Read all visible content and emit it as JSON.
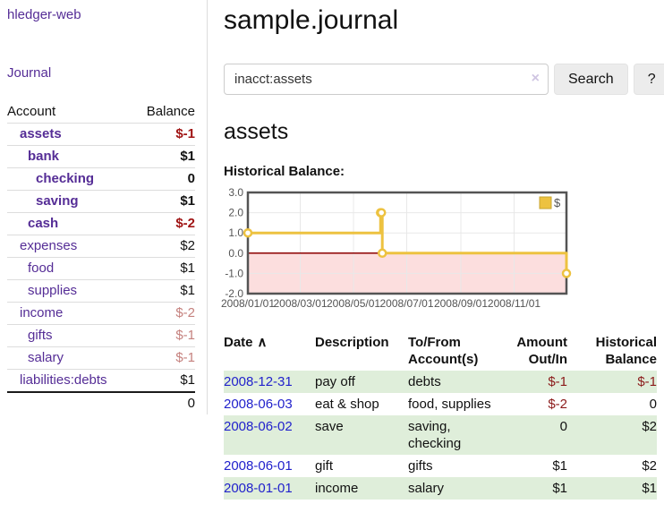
{
  "brand": "hledger-web",
  "nav": {
    "journal": "Journal"
  },
  "page": {
    "title": "sample.journal",
    "account_heading": "assets",
    "chart_heading": "Historical Balance:"
  },
  "search": {
    "value": "inacct:assets",
    "clear": "×",
    "button": "Search",
    "help": "?"
  },
  "sidebar": {
    "col_account": "Account",
    "col_balance": "Balance",
    "rows": [
      {
        "name": "assets",
        "balance": "$-1"
      },
      {
        "name": "bank",
        "balance": "$1"
      },
      {
        "name": "checking",
        "balance": "0"
      },
      {
        "name": "saving",
        "balance": "$1"
      },
      {
        "name": "cash",
        "balance": "$-2"
      },
      {
        "name": "expenses",
        "balance": "$2"
      },
      {
        "name": "food",
        "balance": "$1"
      },
      {
        "name": "supplies",
        "balance": "$1"
      },
      {
        "name": "income",
        "balance": "$-2"
      },
      {
        "name": "gifts",
        "balance": "$-1"
      },
      {
        "name": "salary",
        "balance": "$-1"
      },
      {
        "name": "liabilities:debts",
        "balance": "$1"
      }
    ],
    "total": "0"
  },
  "chart_data": {
    "type": "line",
    "title": "Historical Balance:",
    "step": true,
    "xlim": [
      "2008-01-01",
      "2008-12-31"
    ],
    "ylim": [
      -2,
      3
    ],
    "y_ticks": [
      3,
      2,
      1,
      0,
      -1,
      -2
    ],
    "x_ticks": [
      "2008/01/01",
      "2008/03/01",
      "2008/05/01",
      "2008/07/01",
      "2008/09/01",
      "2008/11/01"
    ],
    "legend_position": "top-right",
    "grid": true,
    "series": [
      {
        "name": "$",
        "color": "#edc240",
        "points": [
          [
            "2008-01-01",
            1
          ],
          [
            "2008-06-01",
            2
          ],
          [
            "2008-06-02",
            2
          ],
          [
            "2008-06-03",
            0
          ],
          [
            "2008-12-31",
            -1
          ]
        ]
      }
    ],
    "colors": {
      "negative_fill": "#fcdede",
      "zero_line": "#8b0000",
      "grid_line": "#e8e8e8",
      "border": "#545454"
    }
  },
  "register": {
    "headers": {
      "date": "Date",
      "sort_indicator": "∧",
      "description": "Description",
      "accounts": "To/From Account(s)",
      "amount": "Amount Out/In",
      "balance": "Historical Balance"
    },
    "rows": [
      {
        "date": "2008-12-31",
        "description": "pay off",
        "accounts": "debts",
        "amount": "$-1",
        "balance": "$-1"
      },
      {
        "date": "2008-06-03",
        "description": "eat & shop",
        "accounts": "food, supplies",
        "amount": "$-2",
        "balance": "0"
      },
      {
        "date": "2008-06-02",
        "description": "save",
        "accounts": "saving,\nchecking",
        "amount": "0",
        "balance": "$2"
      },
      {
        "date": "2008-06-01",
        "description": "gift",
        "accounts": "gifts",
        "amount": "$1",
        "balance": "$2"
      },
      {
        "date": "2008-01-01",
        "description": "income",
        "accounts": "salary",
        "amount": "$1",
        "balance": "$1"
      }
    ]
  },
  "colors": {
    "link_purple": "#552d96",
    "link_blue": "#2222cc",
    "negative_strong": "#a01414",
    "negative_pale": "#c5817e",
    "negative_table": "#8b1a1a",
    "row_stripe_green": "#dfeeda",
    "series_yellow": "#edc240"
  }
}
